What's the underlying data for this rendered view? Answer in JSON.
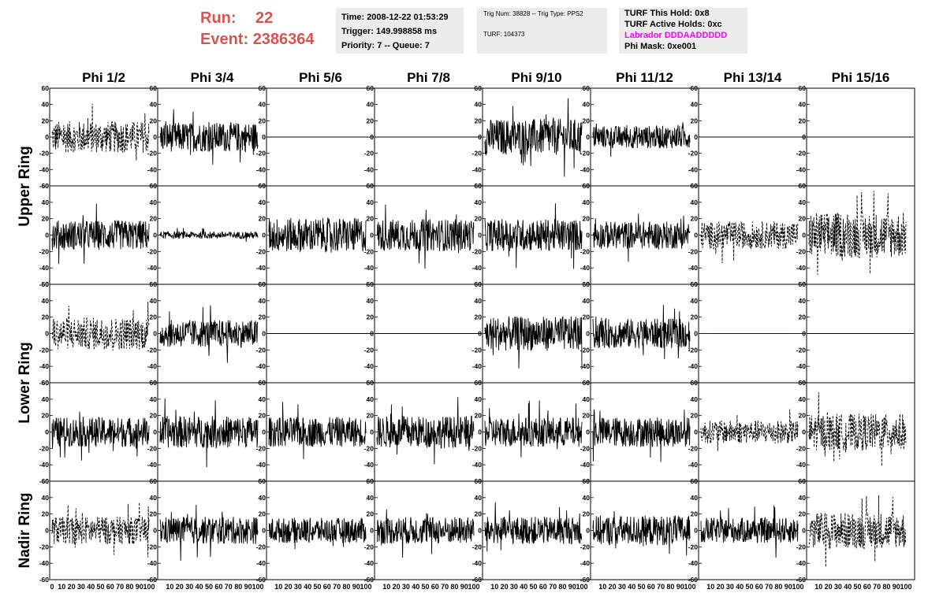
{
  "header": {
    "run_label": "Run:",
    "run_value": "22",
    "event_label": "Event:",
    "event_value": "2386364",
    "info1": [
      "Time: 2008-12-22 01:53:29",
      "Trigger: 149.998858 ms",
      "Priority: 7 -- Queue: 7"
    ],
    "info2": [
      "Trig Num: 38828 -- Trig Type: PPS2",
      "TURF: 104373"
    ],
    "info3": [
      "TURF This Hold: 0x8",
      "TURF Active Holds: 0xc",
      "Labrador DDDAADDDDD",
      "Phi Mask: 0xe001"
    ],
    "labrador_color": "#ff00ff"
  },
  "chart_data": {
    "type": "line",
    "columns": [
      "Phi 1/2",
      "Phi 3/4",
      "Phi 5/6",
      "Phi 7/8",
      "Phi 9/10",
      "Phi 11/12",
      "Phi 13/14",
      "Phi 15/16"
    ],
    "ring_labels": [
      "Upper Ring",
      "Lower Ring",
      "Nadir Ring"
    ],
    "ylim": [
      -60,
      60
    ],
    "xlim": [
      0,
      100
    ],
    "y_ticks": [
      60,
      40,
      20,
      0,
      -20,
      -40,
      -60
    ],
    "x_tick_labels": [
      "0",
      "10",
      "20",
      "30",
      "40",
      "50",
      "60",
      "70",
      "80",
      "90",
      "100"
    ],
    "flat_line_color_blue": "#0000cc",
    "rows": [
      [
        {
          "amp": 14,
          "style": "dashed"
        },
        {
          "amp": 13,
          "style": "solid"
        },
        {
          "amp": 0,
          "style": "solid"
        },
        {
          "amp": 0,
          "style": "solid"
        },
        {
          "amp": 16,
          "style": "solid"
        },
        {
          "amp": 10,
          "style": "solid"
        },
        {
          "amp": 0,
          "style": "solid"
        },
        {
          "amp": 0,
          "style": "solid"
        }
      ],
      [
        {
          "amp": 13,
          "style": "solid"
        },
        {
          "amp": 3,
          "style": "solid"
        },
        {
          "amp": 15,
          "style": "solid"
        },
        {
          "amp": 14,
          "style": "solid"
        },
        {
          "amp": 14,
          "style": "solid"
        },
        {
          "amp": 12,
          "style": "solid"
        },
        {
          "amp": 12,
          "style": "dashed"
        },
        {
          "amp": 20,
          "style": "dashed"
        }
      ],
      [
        {
          "amp": 14,
          "style": "dashed"
        },
        {
          "amp": 12,
          "style": "solid"
        },
        {
          "amp": 0,
          "style": "solid"
        },
        {
          "amp": 0,
          "style": "solid"
        },
        {
          "amp": 15,
          "style": "solid"
        },
        {
          "amp": 13,
          "style": "solid"
        },
        {
          "amp": 0,
          "style": "blue"
        },
        {
          "amp": 0,
          "style": "solid"
        }
      ],
      [
        {
          "amp": 13,
          "style": "solid"
        },
        {
          "amp": 14,
          "style": "solid"
        },
        {
          "amp": 13,
          "style": "solid"
        },
        {
          "amp": 14,
          "style": "solid"
        },
        {
          "amp": 13,
          "style": "solid"
        },
        {
          "amp": 13,
          "style": "solid"
        },
        {
          "amp": 10,
          "style": "dashed"
        },
        {
          "amp": 16,
          "style": "dashed"
        }
      ],
      [
        {
          "amp": 12,
          "style": "dashed"
        },
        {
          "amp": 12,
          "style": "solid"
        },
        {
          "amp": 11,
          "style": "solid"
        },
        {
          "amp": 12,
          "style": "solid"
        },
        {
          "amp": 12,
          "style": "solid"
        },
        {
          "amp": 13,
          "style": "solid"
        },
        {
          "amp": 11,
          "style": "solid"
        },
        {
          "amp": 16,
          "style": "dashed"
        }
      ]
    ]
  }
}
